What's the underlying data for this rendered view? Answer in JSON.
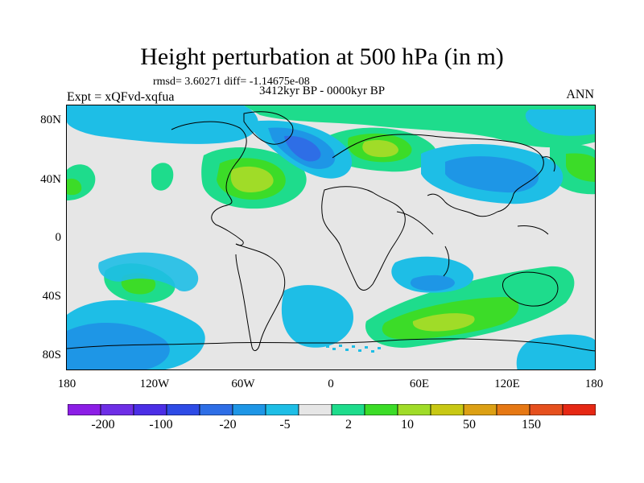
{
  "title": "Height perturbation at 500 hPa (in m)",
  "stats": "rmsd= 3.60271 diff= -1.14675e-08",
  "experiment": "Expt = xQFvd-xqfua",
  "period": "3412kyr BP - 0000kyr BP",
  "season": "ANN",
  "latitude_labels": [
    "80N",
    "40N",
    "0",
    "40S",
    "80S"
  ],
  "longitude_labels": [
    "180",
    "120W",
    "60W",
    "0",
    "60E",
    "120E",
    "180"
  ],
  "colorbar": {
    "colors": [
      "#8c1ee6",
      "#6e2ee6",
      "#4b2ee6",
      "#2e4be6",
      "#2e6ee6",
      "#1e96e6",
      "#1ebee6",
      "#e6e6e6",
      "#1edc8c",
      "#3cdc28",
      "#a0dc28",
      "#c8c814",
      "#dca014",
      "#e67814",
      "#e6501e",
      "#e62814"
    ],
    "labels": [
      "-200",
      "-100",
      "-20",
      "-5",
      "2",
      "10",
      "50",
      "150"
    ]
  }
}
